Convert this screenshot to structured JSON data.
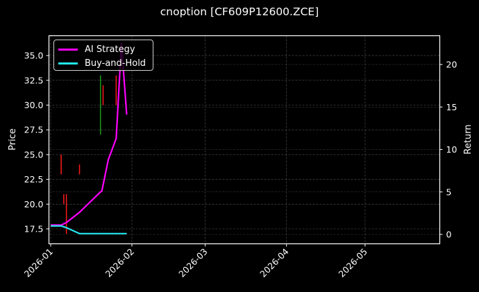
{
  "title": "cnoption [CF609P12600.ZCE]",
  "chart_data": {
    "type": "line",
    "title": "cnoption [CF609P12600.ZCE]",
    "xlabel": "",
    "ylabel": "Price",
    "y2label": "Return",
    "x_ticks": [
      "2026-01",
      "2026-02",
      "2026-03",
      "2026-04",
      "2026-05"
    ],
    "y_ticks": [
      "17.5",
      "20.0",
      "22.5",
      "25.0",
      "27.5",
      "30.0",
      "32.5",
      "35.0"
    ],
    "y2_ticks": [
      "0",
      "5",
      "10",
      "15",
      "20"
    ],
    "ylim": [
      16.5,
      37.0
    ],
    "y2lim": [
      -1.0,
      23.5
    ],
    "grid": true,
    "legend_position": "upper left",
    "series": [
      {
        "name": "AI Strategy",
        "axis": "right",
        "color": "#ff00ff",
        "x": [
          "2026-01-01",
          "2026-01-05",
          "2026-01-07",
          "2026-01-12",
          "2026-01-20",
          "2026-01-20",
          "2026-01-23",
          "2026-01-26",
          "2026-01-28",
          "2026-01-30"
        ],
        "values": [
          1.1,
          1.1,
          1.4,
          2.6,
          5.0,
          5.1,
          8.8,
          11.3,
          22.5,
          14.1
        ]
      },
      {
        "name": "Buy-and-Hold",
        "axis": "right",
        "color": "#22e6f0",
        "x": [
          "2026-01-01",
          "2026-01-05",
          "2026-01-07",
          "2026-01-12",
          "2026-01-30"
        ],
        "values": [
          1.0,
          1.0,
          0.8,
          0.1,
          0.1
        ]
      }
    ],
    "candles": [
      {
        "date": "2026-01-05",
        "high": 25.0,
        "low": 23.0,
        "color": "#ff1a1a"
      },
      {
        "date": "2026-01-06",
        "high": 21.0,
        "low": 20.0,
        "color": "#ff1a1a"
      },
      {
        "date": "2026-01-07",
        "high": 21.0,
        "low": 17.0,
        "color": "#ff1a1a"
      },
      {
        "date": "2026-01-12",
        "high": 24.0,
        "low": 23.0,
        "color": "#ff1a1a"
      },
      {
        "date": "2026-01-20",
        "high": 33.0,
        "low": 27.0,
        "color": "#1a9a1a"
      },
      {
        "date": "2026-01-21",
        "high": 32.0,
        "low": 30.0,
        "color": "#ff1a1a"
      },
      {
        "date": "2026-01-26",
        "high": 33.0,
        "low": 30.0,
        "color": "#ff1a1a"
      }
    ]
  },
  "legend": [
    {
      "label": "AI Strategy",
      "color": "#ff00ff"
    },
    {
      "label": "Buy-and-Hold",
      "color": "#22e6f0"
    }
  ]
}
